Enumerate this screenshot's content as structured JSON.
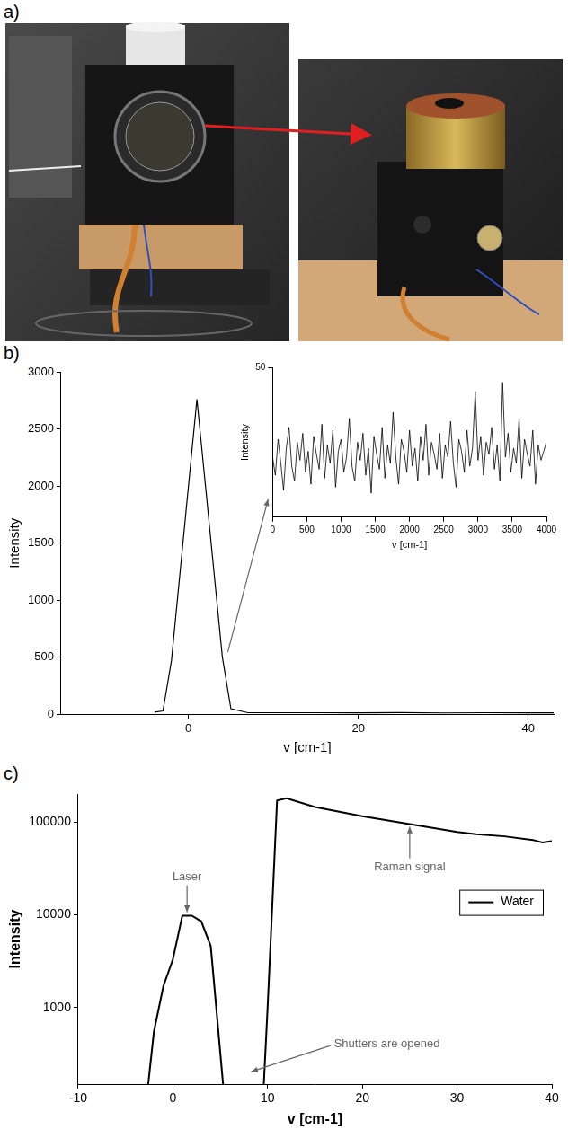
{
  "photo_panel": {
    "panel_label": "a)"
  },
  "chart_data": [
    {
      "type": "line",
      "panel_label": "b)",
      "x_label": "v [cm-1]",
      "y_label": "Intensity",
      "x": [
        -4,
        -3,
        -2,
        1,
        4,
        5,
        7,
        10,
        15,
        20,
        25,
        30,
        35,
        40,
        43
      ],
      "values": [
        20,
        30,
        470,
        2760,
        500,
        50,
        15,
        15,
        15,
        14,
        16,
        13,
        15,
        14,
        14
      ],
      "color": "#000000",
      "xlim": [
        -15,
        43
      ],
      "xticks": [
        0,
        20,
        40
      ],
      "ylim": [
        0,
        3000
      ],
      "yticks": [
        0,
        500,
        1000,
        1500,
        2000,
        2500,
        3000
      ],
      "grid": false
    },
    {
      "type": "line",
      "x_label": "v [cm-1]",
      "y_label": "Intensity",
      "x": [
        0,
        40,
        80,
        120,
        160,
        200,
        240,
        280,
        320,
        360,
        400,
        440,
        480,
        520,
        560,
        600,
        640,
        680,
        720,
        760,
        800,
        840,
        880,
        920,
        960,
        1000,
        1040,
        1080,
        1120,
        1160,
        1200,
        1240,
        1280,
        1320,
        1360,
        1400,
        1440,
        1480,
        1520,
        1560,
        1600,
        1640,
        1680,
        1720,
        1760,
        1800,
        1840,
        1880,
        1920,
        1960,
        2000,
        2040,
        2080,
        2120,
        2160,
        2200,
        2240,
        2280,
        2320,
        2360,
        2400,
        2440,
        2480,
        2520,
        2560,
        2600,
        2640,
        2680,
        2720,
        2760,
        2800,
        2840,
        2880,
        2920,
        2960,
        3000,
        3040,
        3080,
        3120,
        3160,
        3200,
        3240,
        3280,
        3320,
        3360,
        3400,
        3440,
        3480,
        3520,
        3560,
        3600,
        3640,
        3680,
        3720,
        3760,
        3800,
        3840,
        3880,
        3920,
        3960,
        4000
      ],
      "values": [
        20,
        14,
        26,
        18,
        9,
        23,
        30,
        17,
        12,
        25,
        19,
        28,
        15,
        22,
        11,
        27,
        21,
        16,
        31,
        13,
        24,
        18,
        29,
        10,
        22,
        26,
        15,
        20,
        33,
        17,
        12,
        25,
        19,
        28,
        14,
        23,
        8,
        27,
        21,
        16,
        30,
        13,
        24,
        18,
        35,
        20,
        11,
        26,
        22,
        15,
        29,
        17,
        23,
        12,
        27,
        19,
        31,
        14,
        25,
        21,
        16,
        28,
        13,
        24,
        20,
        32,
        18,
        10,
        26,
        22,
        15,
        29,
        17,
        23,
        42,
        19,
        27,
        14,
        25,
        21,
        30,
        16,
        24,
        12,
        45,
        20,
        28,
        15,
        23,
        18,
        33,
        13,
        26,
        21,
        17,
        29,
        11,
        24,
        19,
        22,
        25
      ],
      "color": "#000000",
      "xlim": [
        0,
        4000
      ],
      "xticks": [
        0,
        500,
        1000,
        1500,
        2000,
        2500,
        3000,
        3500,
        4000
      ],
      "ylim": [
        0,
        50
      ],
      "yticks": [
        50
      ],
      "grid": false
    },
    {
      "type": "line",
      "panel_label": "c)",
      "x_label": "v [cm-1]",
      "y_label": "Intensity",
      "log": "y",
      "x": [
        -2.6,
        -2,
        -1,
        0,
        1,
        2,
        3,
        4,
        5.3,
        7,
        9.6,
        10,
        11,
        12,
        15,
        20,
        25,
        30,
        32,
        35,
        38,
        39,
        40
      ],
      "series": [
        {
          "name": "Water",
          "color": "#000000",
          "values": [
            150,
            550,
            1700,
            3300,
            9800,
            9800,
            8500,
            4600,
            150,
            null,
            150,
            1000,
            170000,
            180000,
            145000,
            115000,
            95000,
            78000,
            74000,
            70000,
            64000,
            60000,
            62000
          ]
        }
      ],
      "xlim": [
        -10,
        40
      ],
      "xticks": [
        -10,
        0,
        10,
        20,
        30,
        40
      ],
      "ylim": [
        150,
        200000
      ],
      "yticks": [
        1000,
        10000,
        100000
      ],
      "grid": false,
      "legend": "right",
      "annotations": [
        {
          "text": "Laser",
          "x": 1.5,
          "y": 10000
        },
        {
          "text": "Raman signal",
          "x": 25,
          "y": 95000
        },
        {
          "text": "Shutters are opened",
          "x": 8,
          "y": 200
        }
      ]
    }
  ]
}
